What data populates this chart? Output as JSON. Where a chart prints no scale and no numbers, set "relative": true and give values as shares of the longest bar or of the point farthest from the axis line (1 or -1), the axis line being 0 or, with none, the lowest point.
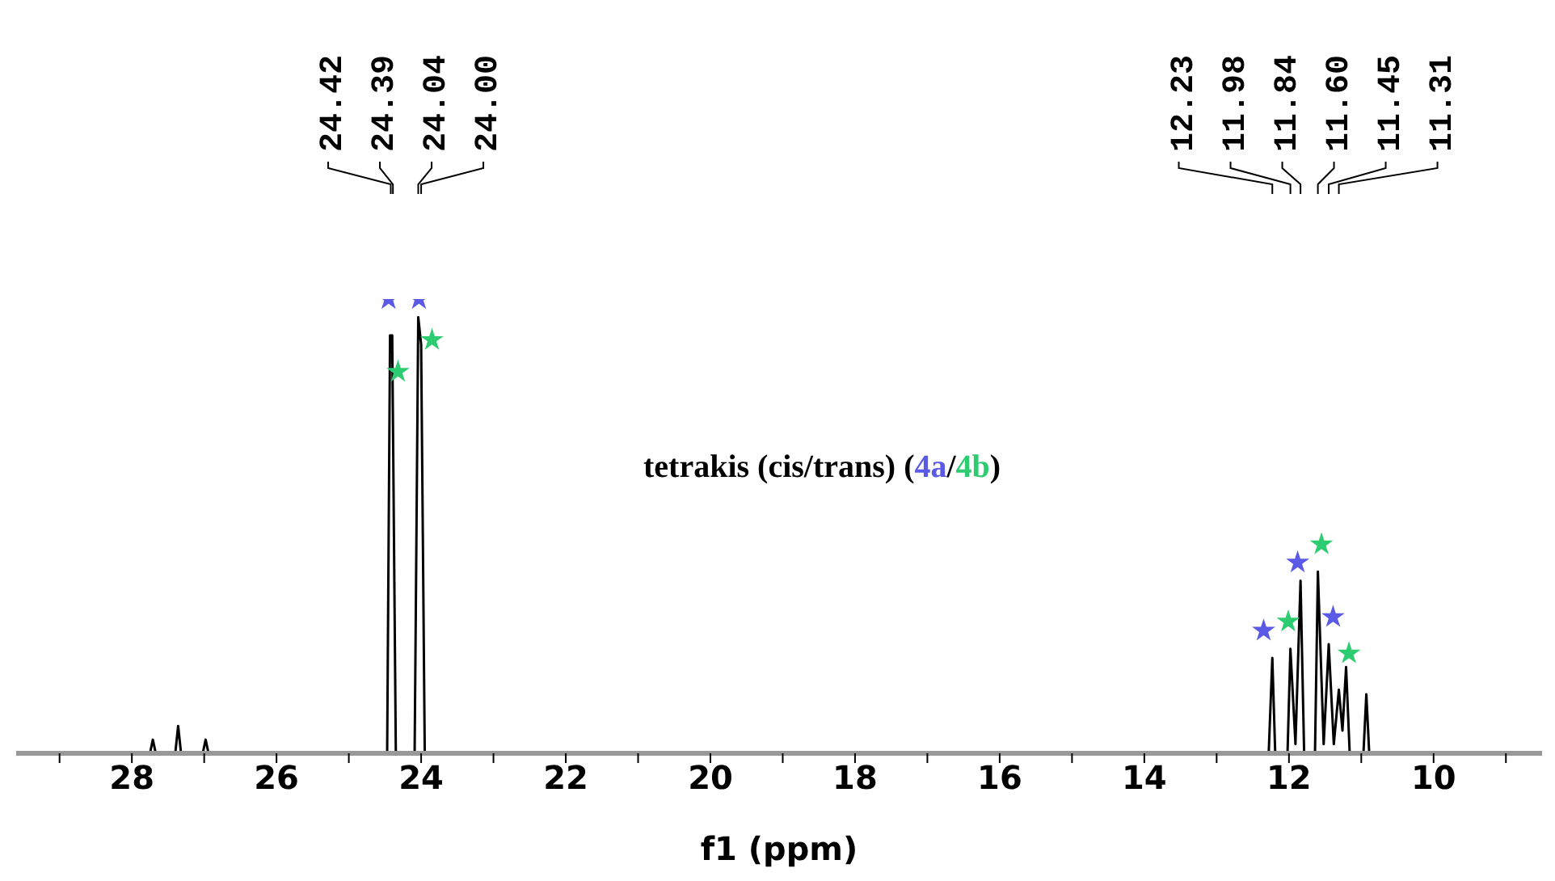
{
  "chart_data": {
    "type": "line",
    "xlabel": "f1 (ppm)",
    "relative": true,
    "xlim": [
      29.6,
      8.5
    ],
    "xticks": [
      {
        "value": 29,
        "label": null
      },
      28,
      {
        "value": 27,
        "label": null
      },
      26,
      {
        "value": 25,
        "label": null
      },
      24,
      {
        "value": 23,
        "label": null
      },
      22,
      {
        "value": 21,
        "label": null
      },
      20,
      {
        "value": 19,
        "label": null
      },
      18,
      {
        "value": 17,
        "label": null
      },
      16,
      {
        "value": 15,
        "label": null
      },
      14,
      {
        "value": 13,
        "label": null
      },
      12,
      {
        "value": 11,
        "label": null
      },
      10,
      {
        "value": 9,
        "label": null
      }
    ],
    "grid": false,
    "legend": "top",
    "tick_labels": "x",
    "annotations": [
      "tetrakis (cis/trans) (",
      "/",
      ")",
      {
        "text": "24.42",
        "x": 24.42
      },
      {
        "text": "24.39",
        "x": 24.39
      },
      {
        "text": "24.04",
        "x": 24.04
      },
      {
        "text": "24.00",
        "x": 24.0
      },
      {
        "text": "12.23",
        "x": 12.23
      },
      {
        "text": "11.98",
        "x": 11.98
      },
      {
        "text": "11.84",
        "x": 11.84
      },
      {
        "text": "11.60",
        "x": 11.6
      },
      {
        "text": "11.45",
        "x": 11.45
      },
      {
        "text": "11.31",
        "x": 11.31
      }
    ],
    "series": [
      {
        "color": "#000000",
        "marker": "none",
        "x": [
          29.6,
          27.75,
          27.71,
          27.67,
          27.4,
          27.36,
          27.32,
          27.02,
          26.98,
          26.94,
          24.47,
          24.43,
          24.4,
          24.35,
          24.09,
          24.04,
          24.0,
          23.95,
          12.28,
          12.23,
          12.19,
          12.02,
          11.98,
          11.91,
          11.84,
          11.79,
          11.64,
          11.6,
          11.52,
          11.45,
          11.38,
          11.31,
          11.26,
          11.21,
          11.16,
          10.97,
          10.93,
          10.89,
          8.5
        ],
        "values": [
          0,
          0,
          0.03,
          0,
          0,
          0.06,
          0,
          0,
          0.03,
          0,
          0,
          0.92,
          0.92,
          0,
          0,
          0.96,
          0.9,
          0,
          0,
          0.21,
          0,
          0,
          0.23,
          0.02,
          0.38,
          0,
          0,
          0.4,
          0.02,
          0.24,
          0.02,
          0.14,
          0.05,
          0.19,
          0,
          0,
          0.13,
          0,
          0
        ]
      },
      {
        "type": "scatter",
        "name": "4a",
        "color": "#5a5ae6",
        "marker": "star",
        "x": [
          24.45,
          24.03,
          12.35,
          11.88,
          11.39
        ],
        "values": [
          1.0,
          1.0,
          0.27,
          0.42,
          0.3
        ]
      },
      {
        "type": "scatter",
        "name": "4b",
        "color": "#2ecc71",
        "marker": "star",
        "x": [
          24.32,
          23.85,
          12.01,
          11.55,
          11.17
        ],
        "values": [
          0.84,
          0.91,
          0.29,
          0.46,
          0.22
        ]
      }
    ]
  }
}
